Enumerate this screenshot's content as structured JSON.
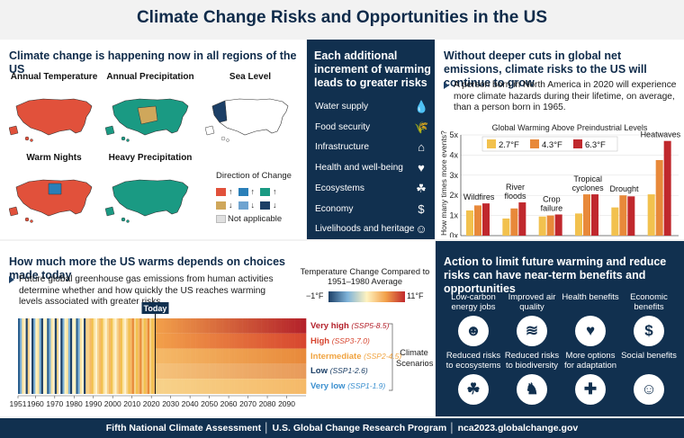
{
  "title": "Climate Change Risks and Opportunities in the US",
  "left_top": {
    "heading": "Climate change is happening now in all regions of the US",
    "maps": [
      {
        "label": "Annual Temperature",
        "color": "#e1513b"
      },
      {
        "label": "Annual Precipitation",
        "color": "#1a9a83"
      },
      {
        "label": "Sea Level",
        "color": "#ffffff"
      },
      {
        "label": "Warm Nights",
        "color": "#e1513b"
      },
      {
        "label": "Heavy Precipitation",
        "color": "#1a9a83"
      }
    ],
    "legend": {
      "title": "Direction of Change",
      "not_applicable": "Not applicable",
      "colors": [
        "#e1513b",
        "#2a7fb8",
        "#1a9a83",
        "#cfa75b",
        "#6fa4d0",
        "#1c3f66"
      ]
    }
  },
  "middle_top": {
    "heading": "Each additional increment of warming leads to greater risks",
    "items": [
      {
        "label": "Water supply",
        "icon": "water-drop-icon",
        "glyph": "💧"
      },
      {
        "label": "Food security",
        "icon": "wheat-icon",
        "glyph": "🌾"
      },
      {
        "label": "Infrastructure",
        "icon": "house-icon",
        "glyph": "⌂"
      },
      {
        "label": "Health and well-being",
        "icon": "heart-pulse-icon",
        "glyph": "♥"
      },
      {
        "label": "Ecosystems",
        "icon": "sprout-icon",
        "glyph": "☘"
      },
      {
        "label": "Economy",
        "icon": "dollar-icon",
        "glyph": "$"
      },
      {
        "label": "Livelihoods and heritage",
        "icon": "family-icon",
        "glyph": "☺"
      }
    ]
  },
  "right_top": {
    "heading": "Without deeper cuts in global net emissions, climate risks to the US will continue to grow",
    "bullet": "A person born in North America in 2020 will experience more climate hazards during their lifetime, on average, than a person born in 1965."
  },
  "chart_data": {
    "type": "bar",
    "title": "Global Warming Above Preindustrial Levels",
    "ylabel": "How many times more events?",
    "ylim": [
      0,
      5
    ],
    "yticks": [
      "0x",
      "1x",
      "2x",
      "3x",
      "4x",
      "5x"
    ],
    "categories": [
      "Wildfires",
      "River floods",
      "Crop failure",
      "Tropical cyclones",
      "Drought",
      "Heatwaves"
    ],
    "series": [
      {
        "name": "2.7°F",
        "color": "#f2c14e",
        "values": [
          1.25,
          0.85,
          0.95,
          1.1,
          1.4,
          2.05
        ]
      },
      {
        "name": "4.3°F",
        "color": "#e8893a",
        "values": [
          1.5,
          1.35,
          1.0,
          2.05,
          2.0,
          3.75
        ]
      },
      {
        "name": "6.3°F",
        "color": "#c0282d",
        "values": [
          1.6,
          1.65,
          1.05,
          2.05,
          1.95,
          4.7
        ]
      }
    ]
  },
  "left_bottom": {
    "heading": "How much more the US warms depends on choices made today",
    "bullet": "Future global greenhouse gas emissions from human activities determine whether and how quickly the US reaches warming levels associated with greater risks.",
    "legend_title": "Temperature Change Compared to 1951–1980 Average",
    "legend_min": "−1°F",
    "legend_max": "11°F",
    "today": "Today",
    "years": [
      "1951",
      "1960",
      "1970",
      "1980",
      "1990",
      "2000",
      "2010",
      "2020",
      "2030",
      "2040",
      "2050",
      "2060",
      "2070",
      "2080",
      "2090"
    ],
    "scenarios_label": "Climate Scenarios",
    "scenarios": [
      {
        "name": "Very high",
        "code": "(SSP5-8.5)",
        "color": "#b3202a"
      },
      {
        "name": "High",
        "code": "(SSP3-7.0)",
        "color": "#d7452f"
      },
      {
        "name": "Intermediate",
        "code": "(SSP2-4.5)",
        "color": "#f0a340"
      },
      {
        "name": "Low",
        "code": "(SSP1-2.6)",
        "color": "#1c3f66"
      },
      {
        "name": "Very low",
        "code": "(SSP1-1.9)",
        "color": "#3a8fcf"
      }
    ]
  },
  "right_bottom": {
    "heading": "Action to limit future warming and reduce risks can have near-term benefits and opportunities",
    "benefits": [
      {
        "label": "Low-carbon energy jobs",
        "icon": "worker-icon",
        "glyph": "☻"
      },
      {
        "label": "Improved air quality",
        "icon": "wind-icon",
        "glyph": "≋"
      },
      {
        "label": "Health benefits",
        "icon": "heart-pulse-icon",
        "glyph": "♥"
      },
      {
        "label": "Economic benefits",
        "icon": "dollar-icon",
        "glyph": "$"
      },
      {
        "label": "Reduced risks to ecosystems",
        "icon": "sprout-icon",
        "glyph": "☘"
      },
      {
        "label": "Reduced risks to biodiversity",
        "icon": "moose-icon",
        "glyph": "♞"
      },
      {
        "label": "More options for adaptation",
        "icon": "puzzle-icon",
        "glyph": "✚"
      },
      {
        "label": "Social benefits",
        "icon": "people-icon",
        "glyph": "☺"
      }
    ]
  },
  "footer": {
    "text": "Fifth National Climate Assessment │ U.S. Global Change Research Program │ nca2023.globalchange.gov"
  }
}
